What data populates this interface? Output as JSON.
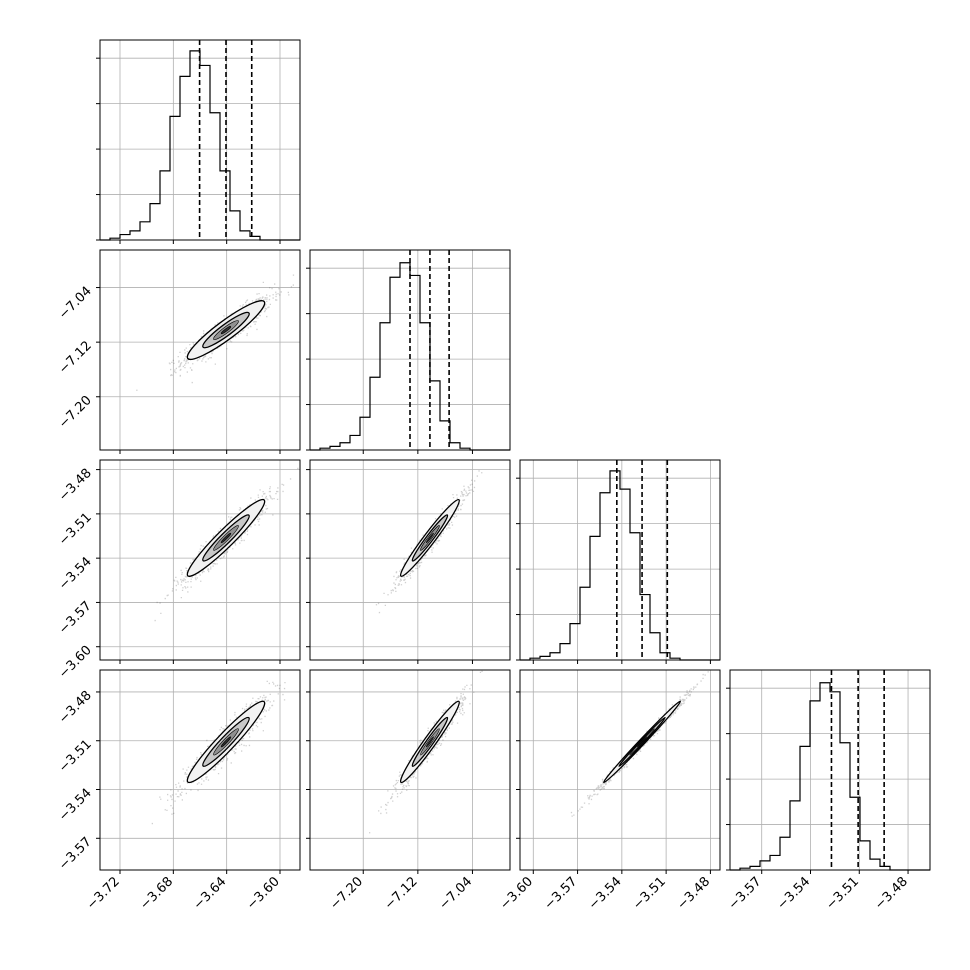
{
  "chart_data": {
    "type": "corner",
    "parameters": 4,
    "grid": true,
    "quantile_line_style": "dashed",
    "colors": {
      "line": "#000000",
      "grid": "#b0b0b0",
      "points": "#555555",
      "contour_fill": [
        "#f2f2f2",
        "#c8c8c8",
        "#909090",
        "#303030"
      ]
    },
    "params": [
      {
        "range": [
          -3.735,
          -3.585
        ],
        "ticks": [
          -3.72,
          -3.68,
          -3.64,
          -3.6
        ],
        "tick_labels": [
          "−3.72",
          "−3.68",
          "−3.64",
          "−3.60"
        ],
        "quantiles": [
          -3.6603,
          -3.6405,
          -3.6212
        ]
      },
      {
        "range": [
          -7.278,
          -6.985
        ],
        "ticks": [
          -7.2,
          -7.12,
          -7.04
        ],
        "tick_labels": [
          "−7.20",
          "−7.12",
          "−7.04"
        ],
        "quantiles": [
          -7.1315,
          -7.1023,
          -7.0742
        ]
      },
      {
        "range": [
          -3.609,
          -3.4735
        ],
        "ticks": [
          -3.6,
          -3.57,
          -3.54,
          -3.51,
          -3.48
        ],
        "tick_labels": [
          "−3.60",
          "−3.57",
          "−3.54",
          "−3.51",
          "−3.48"
        ],
        "quantiles": [
          -3.5434,
          -3.5263,
          -3.5092
        ]
      },
      {
        "range": [
          -3.5895,
          -3.4665
        ],
        "ticks": [
          -3.57,
          -3.54,
          -3.51,
          -3.48
        ],
        "tick_labels": [
          "−3.57",
          "−3.54",
          "−3.51",
          "−3.48"
        ],
        "quantiles": [
          -3.5271,
          -3.5107,
          -3.4947
        ]
      }
    ],
    "histograms": [
      {
        "param": 0,
        "bin_start": -3.735,
        "bin_width": 0.0075,
        "counts": [
          0,
          1,
          3,
          5,
          10,
          20,
          38,
          68,
          90,
          104,
          96,
          70,
          38,
          16,
          5,
          2,
          0,
          0,
          0,
          0
        ],
        "ymax": 110
      },
      {
        "param": 1,
        "bin_start": -7.278,
        "bin_width": 0.01465,
        "counts": [
          0,
          1,
          2,
          4,
          8,
          18,
          40,
          70,
          95,
          103,
          96,
          70,
          38,
          16,
          4,
          1,
          0,
          0,
          0,
          0
        ],
        "ymax": 110
      },
      {
        "param": 2,
        "bin_start": -3.609,
        "bin_width": 0.006775,
        "counts": [
          0,
          1,
          2,
          4,
          9,
          20,
          40,
          68,
          92,
          104,
          94,
          70,
          36,
          15,
          4,
          1,
          0,
          0,
          0,
          0
        ],
        "ymax": 110
      },
      {
        "param": 3,
        "bin_start": -3.5895,
        "bin_width": 0.00615,
        "counts": [
          0,
          1,
          2,
          5,
          8,
          18,
          38,
          68,
          93,
          103,
          98,
          70,
          40,
          16,
          6,
          2,
          0,
          0,
          0,
          0
        ],
        "ymax": 110
      }
    ],
    "joint_panels": [
      {
        "x_param": 0,
        "y_param": 1,
        "center": [
          -3.6405,
          -7.1023
        ],
        "std": [
          0.0145,
          0.0215
        ],
        "corr": 0.92
      },
      {
        "x_param": 0,
        "y_param": 2,
        "center": [
          -3.6405,
          -3.5263
        ],
        "std": [
          0.0145,
          0.013
        ],
        "corr": 0.95
      },
      {
        "x_param": 1,
        "y_param": 2,
        "center": [
          -7.1023,
          -3.5263
        ],
        "std": [
          0.0215,
          0.013
        ],
        "corr": 0.97
      },
      {
        "x_param": 0,
        "y_param": 3,
        "center": [
          -3.6405,
          -3.5107
        ],
        "std": [
          0.0145,
          0.0125
        ],
        "corr": 0.95
      },
      {
        "x_param": 1,
        "y_param": 3,
        "center": [
          -7.1023,
          -3.5107
        ],
        "std": [
          0.0215,
          0.0125
        ],
        "corr": 0.97
      },
      {
        "x_param": 2,
        "y_param": 3,
        "center": [
          -3.5263,
          -3.5107
        ],
        "std": [
          0.013,
          0.0125
        ],
        "corr": 0.995
      }
    ],
    "contour_levels_sigma": [
      2.0,
      1.2,
      0.65,
      0.25
    ]
  }
}
